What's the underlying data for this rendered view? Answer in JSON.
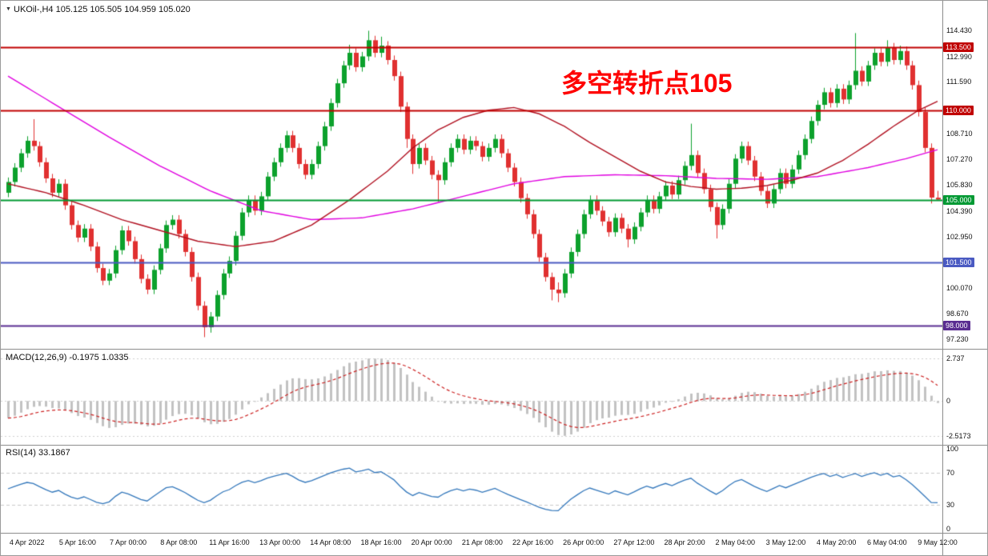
{
  "header": {
    "dropdown_icon": "▼",
    "symbol": "UKOil-,H4",
    "ohlc": "105.125 105.505 104.959 105.020"
  },
  "annotation": {
    "text": "多空转折点105",
    "color": "#ff0000"
  },
  "chart_data": {
    "type": "candlestick",
    "symbol": "UKOil-",
    "timeframe": "H4",
    "ylim": [
      96.7,
      116.1
    ],
    "candle_up": "#0ca12c",
    "candle_down": "#e03030",
    "candles": [
      [
        105.4,
        106.25,
        105.15,
        106.0
      ],
      [
        106.0,
        107.05,
        105.75,
        106.8
      ],
      [
        106.8,
        107.85,
        106.55,
        107.6
      ],
      [
        107.6,
        108.55,
        107.35,
        108.3
      ],
      [
        108.3,
        109.5,
        107.75,
        108.0
      ],
      [
        108.0,
        108.25,
        106.85,
        107.1
      ],
      [
        107.1,
        107.35,
        105.95,
        106.2
      ],
      [
        106.2,
        106.45,
        105.15,
        105.4
      ],
      [
        105.4,
        106.15,
        105.15,
        105.9
      ],
      [
        105.9,
        106.15,
        104.45,
        104.7
      ],
      [
        104.7,
        104.95,
        103.35,
        103.6
      ],
      [
        103.6,
        103.85,
        102.65,
        102.9
      ],
      [
        102.9,
        103.65,
        102.65,
        103.4
      ],
      [
        103.4,
        103.65,
        102.15,
        102.4
      ],
      [
        102.4,
        102.65,
        100.95,
        101.2
      ],
      [
        101.2,
        101.45,
        100.25,
        100.5
      ],
      [
        100.5,
        101.15,
        100.25,
        100.9
      ],
      [
        100.9,
        102.45,
        100.65,
        102.2
      ],
      [
        102.2,
        103.55,
        101.95,
        103.3
      ],
      [
        103.3,
        103.55,
        102.45,
        102.7
      ],
      [
        102.7,
        102.95,
        101.45,
        101.7
      ],
      [
        101.7,
        101.95,
        100.35,
        100.6
      ],
      [
        100.6,
        100.85,
        99.75,
        100.0
      ],
      [
        100.0,
        101.35,
        99.75,
        101.1
      ],
      [
        101.1,
        102.55,
        100.85,
        102.3
      ],
      [
        102.3,
        103.85,
        102.05,
        103.6
      ],
      [
        103.6,
        104.15,
        103.35,
        103.9
      ],
      [
        103.9,
        104.15,
        102.85,
        103.1
      ],
      [
        103.1,
        103.35,
        101.85,
        102.1
      ],
      [
        102.1,
        102.35,
        100.45,
        100.7
      ],
      [
        100.7,
        100.95,
        98.85,
        99.1
      ],
      [
        99.1,
        99.35,
        97.35,
        97.9
      ],
      [
        97.9,
        98.75,
        97.6,
        98.5
      ],
      [
        98.5,
        99.95,
        98.25,
        99.7
      ],
      [
        99.7,
        101.15,
        99.45,
        100.9
      ],
      [
        100.9,
        101.85,
        100.65,
        101.6
      ],
      [
        101.6,
        103.25,
        101.35,
        103.0
      ],
      [
        103.0,
        104.55,
        102.75,
        104.3
      ],
      [
        104.3,
        105.25,
        104.05,
        105.0
      ],
      [
        105.0,
        105.25,
        104.15,
        104.4
      ],
      [
        104.4,
        105.45,
        104.15,
        105.2
      ],
      [
        105.2,
        106.55,
        104.95,
        106.3
      ],
      [
        106.3,
        107.35,
        106.05,
        107.1
      ],
      [
        107.1,
        108.15,
        106.85,
        107.9
      ],
      [
        107.9,
        108.85,
        107.65,
        108.6
      ],
      [
        108.6,
        108.85,
        107.65,
        107.9
      ],
      [
        107.9,
        108.15,
        106.75,
        107.0
      ],
      [
        107.0,
        107.25,
        106.15,
        106.4
      ],
      [
        106.4,
        107.25,
        106.15,
        107.0
      ],
      [
        107.0,
        108.25,
        106.75,
        108.0
      ],
      [
        108.0,
        109.35,
        107.75,
        109.1
      ],
      [
        109.1,
        110.65,
        108.85,
        110.4
      ],
      [
        110.4,
        111.75,
        110.15,
        111.5
      ],
      [
        111.5,
        112.75,
        111.25,
        112.5
      ],
      [
        112.5,
        113.65,
        112.25,
        113.2
      ],
      [
        113.2,
        113.45,
        112.15,
        112.4
      ],
      [
        112.4,
        113.25,
        112.15,
        113.0
      ],
      [
        113.0,
        114.43,
        112.75,
        113.9
      ],
      [
        113.9,
        114.15,
        112.95,
        113.2
      ],
      [
        113.2,
        114.1,
        112.95,
        113.6
      ],
      [
        113.6,
        113.85,
        112.55,
        112.8
      ],
      [
        112.8,
        113.05,
        111.65,
        111.9
      ],
      [
        111.9,
        112.15,
        109.9,
        110.2
      ],
      [
        110.2,
        110.45,
        107.9,
        108.4
      ],
      [
        108.4,
        108.65,
        106.45,
        107.0
      ],
      [
        107.0,
        108.15,
        106.75,
        107.9
      ],
      [
        107.9,
        108.15,
        106.95,
        107.2
      ],
      [
        107.2,
        107.45,
        106.15,
        106.4
      ],
      [
        106.4,
        106.65,
        104.9,
        106.1
      ],
      [
        106.1,
        107.35,
        105.85,
        107.1
      ],
      [
        107.1,
        108.15,
        106.85,
        107.9
      ],
      [
        107.9,
        108.65,
        107.65,
        108.4
      ],
      [
        108.4,
        108.65,
        107.55,
        107.8
      ],
      [
        107.8,
        108.55,
        107.55,
        108.3
      ],
      [
        108.3,
        108.55,
        107.75,
        108.0
      ],
      [
        108.0,
        108.25,
        107.15,
        107.4
      ],
      [
        107.4,
        108.15,
        107.15,
        107.9
      ],
      [
        107.9,
        108.65,
        107.65,
        108.4
      ],
      [
        108.4,
        108.65,
        107.35,
        107.6
      ],
      [
        107.6,
        107.85,
        106.55,
        106.8
      ],
      [
        106.8,
        107.05,
        105.75,
        106.0
      ],
      [
        106.0,
        106.25,
        104.85,
        105.1
      ],
      [
        105.1,
        105.35,
        103.95,
        104.2
      ],
      [
        104.2,
        104.45,
        102.85,
        103.1
      ],
      [
        103.1,
        103.35,
        101.55,
        101.8
      ],
      [
        101.8,
        102.05,
        100.45,
        100.7
      ],
      [
        100.7,
        100.95,
        99.4,
        100.0
      ],
      [
        100.0,
        100.4,
        99.3,
        99.8
      ],
      [
        99.8,
        101.15,
        99.55,
        100.9
      ],
      [
        100.9,
        102.35,
        100.65,
        102.1
      ],
      [
        102.1,
        103.35,
        101.85,
        103.1
      ],
      [
        103.1,
        104.45,
        102.85,
        104.2
      ],
      [
        104.2,
        105.25,
        103.95,
        105.0
      ],
      [
        105.0,
        105.25,
        104.15,
        104.4
      ],
      [
        104.4,
        104.65,
        103.55,
        103.8
      ],
      [
        103.8,
        104.05,
        102.95,
        103.2
      ],
      [
        103.2,
        104.25,
        102.95,
        104.0
      ],
      [
        104.0,
        104.25,
        103.15,
        103.4
      ],
      [
        103.4,
        103.65,
        102.35,
        102.8
      ],
      [
        102.8,
        103.75,
        102.55,
        103.5
      ],
      [
        103.5,
        104.55,
        103.25,
        104.3
      ],
      [
        104.3,
        105.25,
        104.05,
        105.0
      ],
      [
        105.0,
        105.25,
        104.25,
        104.5
      ],
      [
        104.5,
        105.45,
        104.25,
        105.2
      ],
      [
        105.2,
        106.05,
        104.95,
        105.8
      ],
      [
        105.8,
        106.05,
        105.05,
        105.3
      ],
      [
        105.3,
        106.35,
        105.05,
        106.1
      ],
      [
        106.1,
        107.15,
        105.85,
        106.9
      ],
      [
        106.9,
        109.25,
        106.65,
        107.5
      ],
      [
        107.5,
        107.75,
        106.25,
        106.5
      ],
      [
        106.5,
        106.75,
        105.35,
        105.6
      ],
      [
        105.6,
        105.85,
        104.35,
        104.6
      ],
      [
        104.6,
        104.85,
        102.85,
        103.6
      ],
      [
        103.6,
        104.75,
        103.35,
        104.5
      ],
      [
        104.5,
        106.15,
        104.25,
        105.9
      ],
      [
        105.9,
        107.55,
        105.65,
        107.3
      ],
      [
        107.3,
        108.25,
        107.05,
        108.0
      ],
      [
        108.0,
        108.25,
        106.95,
        107.2
      ],
      [
        107.2,
        107.45,
        106.05,
        106.3
      ],
      [
        106.3,
        106.55,
        105.25,
        105.5
      ],
      [
        105.5,
        105.75,
        104.55,
        104.8
      ],
      [
        104.8,
        105.85,
        104.55,
        105.6
      ],
      [
        105.6,
        106.75,
        105.35,
        106.5
      ],
      [
        106.5,
        106.75,
        105.65,
        105.9
      ],
      [
        105.9,
        106.95,
        105.65,
        106.7
      ],
      [
        106.7,
        107.75,
        106.45,
        107.5
      ],
      [
        107.5,
        108.65,
        107.25,
        108.4
      ],
      [
        108.4,
        109.65,
        108.15,
        109.4
      ],
      [
        109.4,
        110.55,
        109.15,
        110.3
      ],
      [
        110.3,
        111.25,
        110.05,
        111.0
      ],
      [
        111.0,
        111.25,
        110.15,
        110.4
      ],
      [
        110.4,
        111.45,
        110.15,
        111.2
      ],
      [
        111.2,
        111.45,
        110.35,
        110.6
      ],
      [
        110.6,
        111.65,
        110.35,
        111.4
      ],
      [
        111.4,
        114.3,
        111.15,
        112.2
      ],
      [
        112.2,
        112.45,
        111.35,
        111.6
      ],
      [
        111.6,
        112.75,
        111.35,
        112.5
      ],
      [
        112.5,
        113.45,
        112.25,
        113.2
      ],
      [
        113.2,
        113.45,
        112.45,
        112.7
      ],
      [
        112.7,
        113.9,
        112.45,
        113.5
      ],
      [
        113.5,
        113.75,
        112.55,
        112.8
      ],
      [
        112.8,
        113.6,
        112.55,
        113.3
      ],
      [
        113.3,
        113.55,
        112.25,
        112.5
      ],
      [
        112.5,
        112.75,
        111.15,
        111.4
      ],
      [
        111.4,
        111.65,
        109.65,
        109.9
      ],
      [
        109.9,
        110.15,
        107.65,
        107.9
      ],
      [
        107.9,
        108.15,
        104.8,
        105.13
      ],
      [
        105.125,
        105.505,
        104.959,
        105.02
      ]
    ],
    "moving_averages": [
      {
        "name": "ma-slow-magenta",
        "color": "#e000e0",
        "points": [
          [
            0,
            111.9
          ],
          [
            8,
            110.2
          ],
          [
            16,
            108.5
          ],
          [
            24,
            106.9
          ],
          [
            32,
            105.5
          ],
          [
            40,
            104.4
          ],
          [
            48,
            103.9
          ],
          [
            56,
            104.0
          ],
          [
            64,
            104.5
          ],
          [
            72,
            105.2
          ],
          [
            80,
            105.9
          ],
          [
            88,
            106.3
          ],
          [
            96,
            106.4
          ],
          [
            104,
            106.35
          ],
          [
            112,
            106.2
          ],
          [
            120,
            106.15
          ],
          [
            128,
            106.3
          ],
          [
            136,
            106.8
          ],
          [
            142,
            107.3
          ],
          [
            147,
            107.8
          ]
        ]
      },
      {
        "name": "ma-fast-crimson",
        "color": "#b01020",
        "points": [
          [
            0,
            105.9
          ],
          [
            6,
            105.4
          ],
          [
            12,
            104.7
          ],
          [
            18,
            103.9
          ],
          [
            24,
            103.3
          ],
          [
            30,
            102.7
          ],
          [
            36,
            102.4
          ],
          [
            42,
            102.7
          ],
          [
            48,
            103.6
          ],
          [
            54,
            105.0
          ],
          [
            60,
            106.6
          ],
          [
            64,
            107.9
          ],
          [
            68,
            108.9
          ],
          [
            72,
            109.6
          ],
          [
            76,
            110.0
          ],
          [
            80,
            110.15
          ],
          [
            84,
            109.8
          ],
          [
            88,
            109.1
          ],
          [
            92,
            108.2
          ],
          [
            96,
            107.4
          ],
          [
            100,
            106.6
          ],
          [
            104,
            106.0
          ],
          [
            108,
            105.75
          ],
          [
            112,
            105.6
          ],
          [
            116,
            105.65
          ],
          [
            120,
            105.8
          ],
          [
            124,
            106.1
          ],
          [
            128,
            106.5
          ],
          [
            132,
            107.2
          ],
          [
            136,
            108.1
          ],
          [
            140,
            109.1
          ],
          [
            144,
            110.0
          ],
          [
            147,
            110.5
          ]
        ]
      }
    ],
    "hlines": [
      {
        "value": 113.5,
        "label": "113.500",
        "color": "#c00000"
      },
      {
        "value": 110.0,
        "label": "110.000",
        "color": "#c00000"
      },
      {
        "value": 105.0,
        "label": "105.000",
        "color": "#009933"
      },
      {
        "value": 101.5,
        "label": "101.500",
        "color": "#4a5ac2"
      },
      {
        "value": 98.0,
        "label": "98.000",
        "color": "#5a2d91"
      }
    ],
    "price_axis_labels": [
      {
        "text": "114.430",
        "value": 114.43
      },
      {
        "text": "112.990",
        "value": 112.99
      },
      {
        "text": "111.590",
        "value": 111.59
      },
      {
        "text": "108.710",
        "value": 108.71
      },
      {
        "text": "107.270",
        "value": 107.27
      },
      {
        "text": "105.830",
        "value": 105.83
      },
      {
        "text": "104.390",
        "value": 104.39
      },
      {
        "text": "102.950",
        "value": 102.95
      },
      {
        "text": "100.070",
        "value": 100.07
      },
      {
        "text": "98.670",
        "value": 98.67
      },
      {
        "text": "97.230",
        "value": 97.23
      }
    ],
    "time_axis_labels": [
      "4 Apr 2022",
      "5 Apr 16:00",
      "7 Apr 00:00",
      "8 Apr 08:00",
      "11 Apr 16:00",
      "13 Apr 00:00",
      "14 Apr 08:00",
      "18 Apr 16:00",
      "20 Apr 00:00",
      "21 Apr 08:00",
      "22 Apr 16:00",
      "26 Apr 00:00",
      "27 Apr 12:00",
      "28 Apr 20:00",
      "2 May 04:00",
      "3 May 12:00",
      "4 May 20:00",
      "6 May 04:00",
      "9 May 12:00"
    ],
    "indicators": {
      "macd": {
        "label": "MACD(12,26,9)",
        "display_values": "-0.1975 1.0335",
        "axis": [
          {
            "text": "2.737",
            "value": 2.737
          },
          {
            "text": "0",
            "value": 0
          },
          {
            "text": "-2.5173",
            "value": -2.5173
          }
        ],
        "histogram_color": "#c2c2c2",
        "signal_color": "#cc2222"
      },
      "rsi": {
        "label": "RSI(14)",
        "display_value": "33.1867",
        "axis": [
          {
            "text": "100",
            "value": 100
          },
          {
            "text": "70",
            "value": 70
          },
          {
            "text": "30",
            "value": 30
          },
          {
            "text": "0",
            "value": 0
          }
        ],
        "levels": [
          70,
          30
        ],
        "line_color": "#3377bb"
      }
    }
  }
}
